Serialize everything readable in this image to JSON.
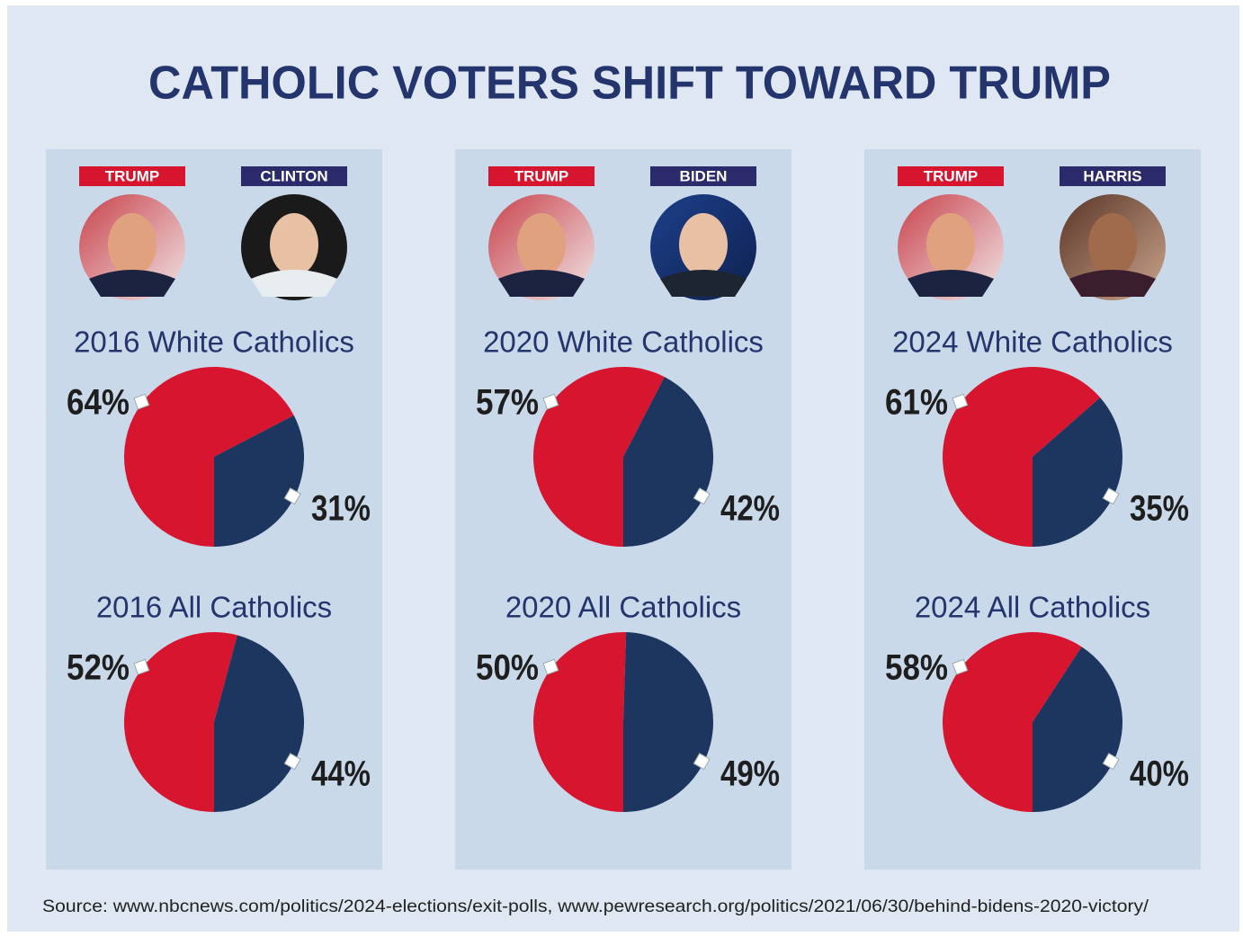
{
  "title": "CATHOLIC VOTERS SHIFT TOWARD TRUMP",
  "source": "Source: www.nbcnews.com/politics/2024-elections/exit-polls, www.pewresearch.org/politics/2021/06/30/behind-bidens-2020-victory/",
  "panels": [
    {
      "candidates": [
        "TRUMP",
        "CLINTON"
      ]
    },
    {
      "candidates": [
        "TRUMP",
        "BIDEN"
      ]
    },
    {
      "candidates": [
        "TRUMP",
        "HARRIS"
      ]
    }
  ],
  "chart_data": [
    {
      "type": "pie",
      "title": "2016 White Catholics",
      "values": [
        64,
        31
      ],
      "value_labels": [
        "64%",
        "31%"
      ],
      "colors": [
        "#d8152f",
        "#1d3660"
      ]
    },
    {
      "type": "pie",
      "title": "2016 All Catholics",
      "values": [
        52,
        44
      ],
      "value_labels": [
        "52%",
        "44%"
      ],
      "colors": [
        "#d8152f",
        "#1d3660"
      ]
    },
    {
      "type": "pie",
      "title": "2020 White Catholics",
      "values": [
        57,
        42
      ],
      "value_labels": [
        "57%",
        "42%"
      ],
      "colors": [
        "#d8152f",
        "#1d3660"
      ]
    },
    {
      "type": "pie",
      "title": "2020 All Catholics",
      "values": [
        50,
        49
      ],
      "value_labels": [
        "50%",
        "49%"
      ],
      "colors": [
        "#d8152f",
        "#1d3660"
      ]
    },
    {
      "type": "pie",
      "title": "2024 White Catholics",
      "values": [
        61,
        35
      ],
      "value_labels": [
        "61%",
        "35%"
      ],
      "colors": [
        "#d8152f",
        "#1d3660"
      ]
    },
    {
      "type": "pie",
      "title": "2024 All Catholics",
      "values": [
        58,
        40
      ],
      "value_labels": [
        "58%",
        "40%"
      ],
      "colors": [
        "#d8152f",
        "#1d3660"
      ]
    }
  ]
}
